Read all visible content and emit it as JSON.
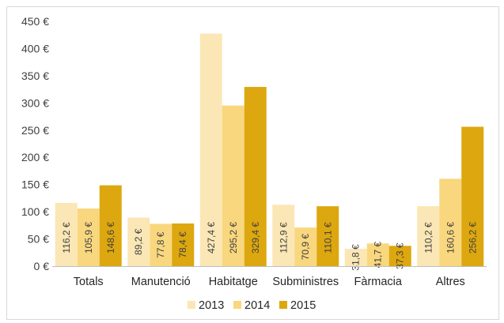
{
  "chart_data": {
    "type": "bar",
    "categories": [
      "Totals",
      "Manutenció",
      "Habitatge",
      "Subministres",
      "Fàrmacia",
      "Altres"
    ],
    "series": [
      {
        "name": "2013",
        "color": "#FBE7B5",
        "values": [
          116.2,
          89.2,
          427.4,
          112.9,
          31.8,
          110.2
        ],
        "labels": [
          "116,2 €",
          "89,2 €",
          "427,4 €",
          "112,9 €",
          "31,8 €",
          "110,2 €"
        ]
      },
      {
        "name": "2014",
        "color": "#F9D77E",
        "values": [
          105.9,
          77.8,
          295.2,
          70.9,
          41.7,
          160.6
        ],
        "labels": [
          "105,9 €",
          "77,8 €",
          "295,2 €",
          "70,9 €",
          "41,7 €",
          "160,6 €"
        ]
      },
      {
        "name": "2015",
        "color": "#DDA70F",
        "values": [
          148.6,
          78.4,
          329.4,
          110.1,
          37.3,
          256.2
        ],
        "labels": [
          "148,6 €",
          "78,4 €",
          "329,4 €",
          "110,1 €",
          "37,3 €",
          "256,2 €"
        ]
      }
    ],
    "ylim": [
      0,
      450
    ],
    "yticks": [
      0,
      50,
      100,
      150,
      200,
      250,
      300,
      350,
      400,
      450
    ],
    "ytick_labels": [
      "0 €",
      "50 €",
      "100 €",
      "150 €",
      "200 €",
      "250 €",
      "300 €",
      "350 €",
      "400 €",
      "450 €"
    ],
    "grid": false,
    "legend_position": "bottom",
    "title": "",
    "xlabel": "",
    "ylabel": ""
  }
}
